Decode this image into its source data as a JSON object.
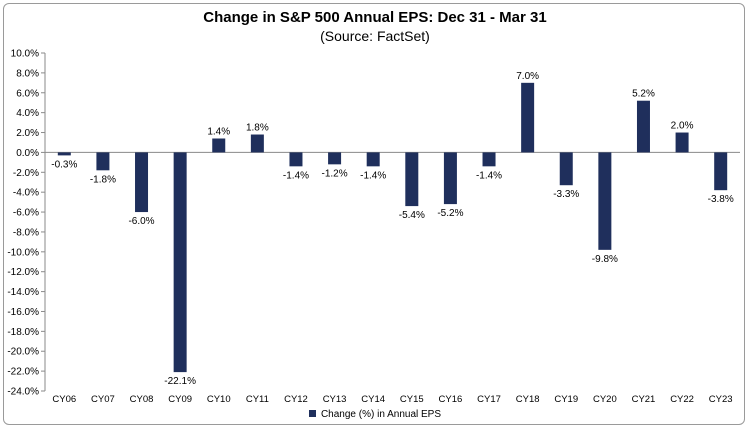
{
  "colors": {
    "bar": "#1f2f5c",
    "axis": "#8a8a8a",
    "text": "#000000"
  },
  "chart_data": {
    "type": "bar",
    "title": "Change in S&P 500 Annual EPS: Dec 31 - Mar 31",
    "subtitle": "(Source: FactSet)",
    "categories": [
      "CY06",
      "CY07",
      "CY08",
      "CY09",
      "CY10",
      "CY11",
      "CY12",
      "CY13",
      "CY14",
      "CY15",
      "CY16",
      "CY17",
      "CY18",
      "CY19",
      "CY20",
      "CY21",
      "CY22",
      "CY23"
    ],
    "series": [
      {
        "name": "Change (%) in Annual EPS",
        "values": [
          -0.3,
          -1.8,
          -6.0,
          -22.1,
          1.4,
          1.8,
          -1.4,
          -1.2,
          -1.4,
          -5.4,
          -5.2,
          -1.4,
          7.0,
          -3.3,
          -9.8,
          5.2,
          2.0,
          -3.8
        ],
        "data_labels": [
          "-0.3%",
          "-1.8%",
          "-6.0%",
          "-22.1%",
          "1.4%",
          "1.8%",
          "-1.4%",
          "-1.2%",
          "-1.4%",
          "-5.4%",
          "-5.2%",
          "-1.4%",
          "7.0%",
          "-3.3%",
          "-9.8%",
          "5.2%",
          "2.0%",
          "-3.8%"
        ]
      }
    ],
    "ylim": [
      -24,
      10
    ],
    "ytick_step": 2,
    "yticks": [
      "10.0%",
      "8.0%",
      "6.0%",
      "4.0%",
      "2.0%",
      "0.0%",
      "-2.0%",
      "-4.0%",
      "-6.0%",
      "-8.0%",
      "-10.0%",
      "-12.0%",
      "-14.0%",
      "-16.0%",
      "-18.0%",
      "-20.0%",
      "-22.0%",
      "-24.0%"
    ],
    "grid": false,
    "legend_position": "bottom-center"
  }
}
